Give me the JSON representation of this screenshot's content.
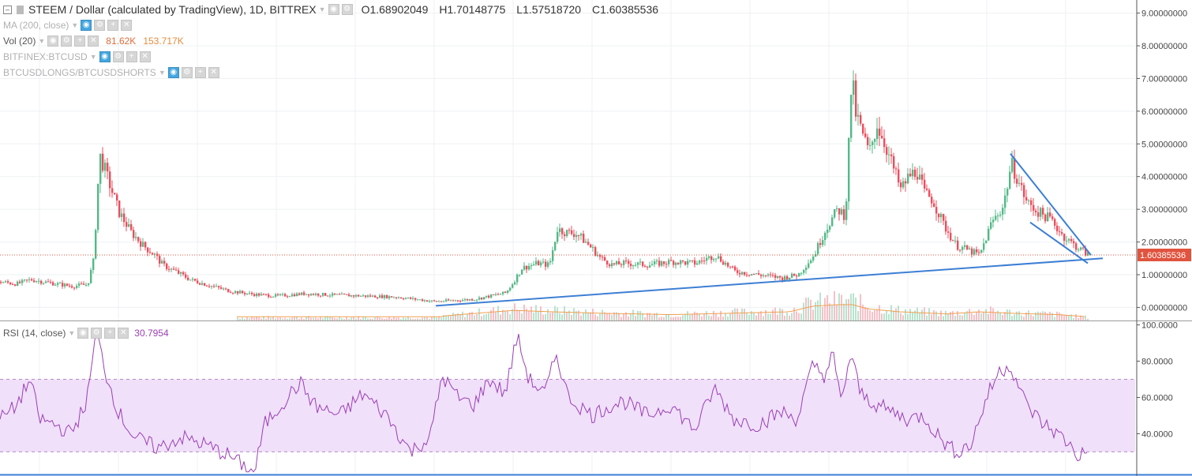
{
  "header": {
    "title": "STEEM / Dollar (calculated by TradingView), 1D, BITTREX",
    "open": "O1.68902049",
    "high": "H1.70148775",
    "low": "L1.57518720",
    "close": "C1.60385536"
  },
  "legends": {
    "ma": "MA (200, close)",
    "vol": "Vol (20)",
    "vol_value": "81.62K",
    "vol_ma": "153.717K",
    "bitfinex": "BITFINEX:BTCUSD",
    "longs": "BTCUSDLONGS/BTCUSDSHORTS",
    "rsi": "RSI (14, close)",
    "rsi_value": "30.7954"
  },
  "colors": {
    "up": "#53b987",
    "down": "#eb4d5c",
    "trendline": "#3d7fd4",
    "rsi": "#9b3fb5",
    "rsi_band": "#f0e0fa",
    "last_price": "#e0533e"
  },
  "chart_data": [
    {
      "type": "candlestick",
      "title": "STEEM / Dollar (calculated by TradingView), 1D, BITTREX",
      "ylim": [
        -0.4,
        9.4
      ],
      "y_ticks": [
        "9.00000000",
        "8.00000000",
        "7.00000000",
        "6.00000000",
        "5.00000000",
        "4.00000000",
        "3.00000000",
        "2.00000000",
        "1.00000000",
        "0.00000000"
      ],
      "last_price_label": "1.60385536",
      "last_price": 1.60385536,
      "price_profile": [
        [
          0,
          0.78
        ],
        [
          20,
          0.72
        ],
        [
          38,
          0.85
        ],
        [
          70,
          0.72
        ],
        [
          90,
          0.65
        ],
        [
          110,
          0.7
        ],
        [
          118,
          1.5
        ],
        [
          122,
          3.5
        ],
        [
          126,
          4.6
        ],
        [
          132,
          4.2
        ],
        [
          140,
          3.6
        ],
        [
          150,
          2.9
        ],
        [
          165,
          2.3
        ],
        [
          180,
          1.9
        ],
        [
          195,
          1.6
        ],
        [
          205,
          1.3
        ],
        [
          225,
          1.05
        ],
        [
          240,
          0.85
        ],
        [
          260,
          0.7
        ],
        [
          290,
          0.5
        ],
        [
          320,
          0.4
        ],
        [
          350,
          0.35
        ],
        [
          385,
          0.42
        ],
        [
          420,
          0.38
        ],
        [
          460,
          0.35
        ],
        [
          500,
          0.32
        ],
        [
          550,
          0.18
        ],
        [
          600,
          0.25
        ],
        [
          640,
          0.45
        ],
        [
          650,
          0.8
        ],
        [
          660,
          1.2
        ],
        [
          680,
          1.35
        ],
        [
          695,
          1.3
        ],
        [
          705,
          2.4
        ],
        [
          715,
          2.3
        ],
        [
          730,
          2.25
        ],
        [
          745,
          1.9
        ],
        [
          760,
          1.5
        ],
        [
          775,
          1.3
        ],
        [
          790,
          1.35
        ],
        [
          820,
          1.3
        ],
        [
          850,
          1.4
        ],
        [
          880,
          1.35
        ],
        [
          905,
          1.6
        ],
        [
          930,
          1.1
        ],
        [
          960,
          1.0
        ],
        [
          990,
          0.9
        ],
        [
          1010,
          1.0
        ],
        [
          1030,
          1.6
        ],
        [
          1045,
          2.4
        ],
        [
          1060,
          3.0
        ],
        [
          1070,
          2.8
        ],
        [
          1078,
          7.2
        ],
        [
          1082,
          6.0
        ],
        [
          1090,
          5.4
        ],
        [
          1100,
          4.7
        ],
        [
          1110,
          5.6
        ],
        [
          1120,
          5.0
        ],
        [
          1130,
          4.3
        ],
        [
          1140,
          3.6
        ],
        [
          1150,
          4.0
        ],
        [
          1160,
          4.2
        ],
        [
          1170,
          3.5
        ],
        [
          1180,
          3.3
        ],
        [
          1195,
          2.5
        ],
        [
          1210,
          1.9
        ],
        [
          1225,
          1.75
        ],
        [
          1240,
          1.6
        ],
        [
          1255,
          2.6
        ],
        [
          1270,
          3.1
        ],
        [
          1280,
          4.4
        ],
        [
          1290,
          3.8
        ],
        [
          1300,
          3.2
        ],
        [
          1315,
          2.9
        ],
        [
          1330,
          2.7
        ],
        [
          1345,
          2.2
        ],
        [
          1360,
          1.9
        ],
        [
          1378,
          1.6
        ]
      ]
    },
    {
      "type": "line",
      "title": "RSI (14, close)",
      "ylim": [
        18,
        102
      ],
      "y_ticks": [
        "100.0000",
        "80.0000",
        "60.0000",
        "40.0000"
      ],
      "bands": [
        30,
        70
      ],
      "last_value": 30.7954,
      "rsi_profile": [
        [
          0,
          48
        ],
        [
          20,
          55
        ],
        [
          38,
          70
        ],
        [
          50,
          48
        ],
        [
          70,
          45
        ],
        [
          90,
          40
        ],
        [
          110,
          58
        ],
        [
          122,
          96
        ],
        [
          135,
          72
        ],
        [
          150,
          52
        ],
        [
          170,
          38
        ],
        [
          200,
          32
        ],
        [
          230,
          38
        ],
        [
          260,
          34
        ],
        [
          290,
          28
        ],
        [
          310,
          22
        ],
        [
          322,
          18
        ],
        [
          335,
          45
        ],
        [
          360,
          58
        ],
        [
          380,
          68
        ],
        [
          400,
          55
        ],
        [
          430,
          50
        ],
        [
          460,
          62
        ],
        [
          490,
          50
        ],
        [
          520,
          30
        ],
        [
          545,
          38
        ],
        [
          560,
          72
        ],
        [
          580,
          60
        ],
        [
          600,
          56
        ],
        [
          620,
          70
        ],
        [
          640,
          62
        ],
        [
          655,
          94
        ],
        [
          670,
          70
        ],
        [
          690,
          62
        ],
        [
          705,
          84
        ],
        [
          720,
          60
        ],
        [
          750,
          50
        ],
        [
          770,
          55
        ],
        [
          790,
          58
        ],
        [
          820,
          50
        ],
        [
          850,
          56
        ],
        [
          880,
          42
        ],
        [
          905,
          65
        ],
        [
          930,
          48
        ],
        [
          960,
          45
        ],
        [
          990,
          52
        ],
        [
          1010,
          48
        ],
        [
          1030,
          78
        ],
        [
          1045,
          72
        ],
        [
          1055,
          84
        ],
        [
          1065,
          58
        ],
        [
          1078,
          84
        ],
        [
          1090,
          62
        ],
        [
          1110,
          56
        ],
        [
          1130,
          52
        ],
        [
          1150,
          48
        ],
        [
          1170,
          50
        ],
        [
          1190,
          38
        ],
        [
          1210,
          30
        ],
        [
          1230,
          34
        ],
        [
          1250,
          60
        ],
        [
          1265,
          74
        ],
        [
          1280,
          78
        ],
        [
          1300,
          56
        ],
        [
          1320,
          46
        ],
        [
          1340,
          40
        ],
        [
          1355,
          34
        ],
        [
          1365,
          28
        ],
        [
          1378,
          30
        ]
      ]
    },
    {
      "type": "bar",
      "title": "Vol (20)",
      "volume_profile": [
        [
          560,
          0.2
        ],
        [
          650,
          0.6
        ],
        [
          700,
          0.5
        ],
        [
          760,
          0.4
        ],
        [
          850,
          0.3
        ],
        [
          1000,
          0.5
        ],
        [
          1030,
          0.9
        ],
        [
          1060,
          1.0
        ],
        [
          1080,
          1.0
        ],
        [
          1100,
          0.7
        ],
        [
          1140,
          0.5
        ],
        [
          1200,
          0.35
        ],
        [
          1240,
          0.5
        ],
        [
          1280,
          0.4
        ],
        [
          1340,
          0.3
        ],
        [
          1378,
          0.15
        ]
      ]
    }
  ]
}
